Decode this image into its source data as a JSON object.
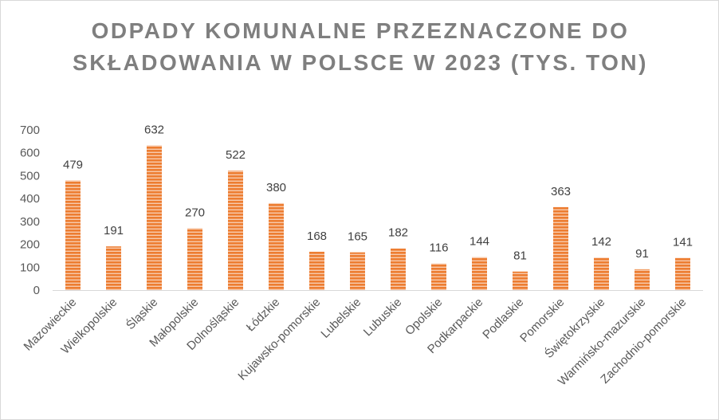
{
  "chart_data": {
    "type": "bar",
    "title": "ODPADY KOMUNALNE PRZEZNACZONE DO SKŁADOWANIA W POLSCE W 2023 (TYS. TON)",
    "categories": [
      "Mazowieckie",
      "Wielkopolskie",
      "Śląskie",
      "Małopolskie",
      "Dolnośląskie",
      "Łódzkie",
      "Kujawsko-pomorskie",
      "Lubelskie",
      "Lubuskie",
      "Opolskie",
      "Podkarpackie",
      "Podlaskie",
      "Pomorskie",
      "Świętokrzyskie",
      "Warmińsko-mazurskie",
      "Zachodnio-pomorskie"
    ],
    "values": [
      479,
      191,
      632,
      270,
      522,
      380,
      168,
      165,
      182,
      116,
      144,
      81,
      363,
      142,
      91,
      141
    ],
    "yticks": [
      "0",
      "100",
      "200",
      "300",
      "400",
      "500",
      "600",
      "700"
    ],
    "ylim": [
      0,
      700
    ],
    "xlabel": "",
    "ylabel": "",
    "grid": false,
    "legend": "none",
    "bar_color": "#ed7d31",
    "bar_stripe_color": "#f8cbad"
  }
}
